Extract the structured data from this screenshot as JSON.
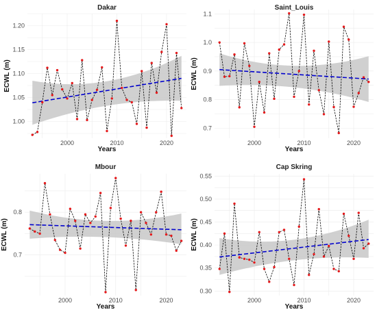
{
  "chart_data": [
    {
      "type": "line",
      "title": "Dakar",
      "xlabel": "Years",
      "ylabel": "ECWL (m)",
      "xlim": [
        1992,
        2024
      ],
      "ylim": [
        0.965,
        1.225
      ],
      "xticks": [
        2000,
        2010,
        2020
      ],
      "yticks": [
        1.0,
        1.05,
        1.1,
        1.15,
        1.2
      ],
      "ydecimals": 2,
      "grid": true,
      "legend": "none",
      "x": [
        1993,
        1994,
        1995,
        1996,
        1997,
        1998,
        1999,
        2000,
        2001,
        2002,
        2003,
        2004,
        2005,
        2006,
        2007,
        2008,
        2009,
        2010,
        2011,
        2012,
        2013,
        2014,
        2015,
        2016,
        2017,
        2018,
        2019,
        2020,
        2021,
        2022,
        2023
      ],
      "values": [
        0.972,
        0.978,
        1.04,
        1.112,
        1.055,
        1.107,
        1.067,
        1.048,
        1.08,
        1.005,
        1.128,
        1.003,
        1.045,
        1.066,
        1.113,
        0.98,
        1.048,
        1.21,
        1.07,
        1.045,
        1.04,
        0.995,
        1.105,
        0.987,
        1.122,
        1.06,
        1.145,
        1.203,
        0.97,
        1.143,
        1.028
      ],
      "trend": {
        "x": [
          1993,
          2023
        ],
        "y": [
          1.039,
          1.09
        ],
        "ci_low": [
          0.993,
          1.043
        ],
        "ci_mid": [
          1.043,
          1.059
        ],
        "ci_high": [
          1.085,
          1.137
        ]
      },
      "colors": {
        "points": "#e41a1c",
        "line": "#000000",
        "trend": "#0000cc",
        "band": "#c8c8c8"
      }
    },
    {
      "type": "line",
      "title": "Saint_Louis",
      "xlabel": "Years",
      "ylabel": "ECWL (m)",
      "xlim": [
        1992,
        2024
      ],
      "ylim": [
        0.665,
        1.115
      ],
      "xticks": [
        2000,
        2010,
        2020
      ],
      "yticks": [
        0.7,
        0.8,
        0.9,
        1.0,
        1.1
      ],
      "ydecimals": 1,
      "grid": true,
      "legend": "none",
      "x": [
        1993,
        1994,
        1995,
        1996,
        1997,
        1998,
        1999,
        2000,
        2001,
        2002,
        2003,
        2004,
        2005,
        2006,
        2007,
        2008,
        2009,
        2010,
        2011,
        2012,
        2013,
        2014,
        2015,
        2016,
        2017,
        2018,
        2019,
        2020,
        2021,
        2022,
        2023
      ],
      "values": [
        1.0,
        0.88,
        0.882,
        0.958,
        0.773,
        0.997,
        0.918,
        0.705,
        0.862,
        0.755,
        0.962,
        0.803,
        0.975,
        0.993,
        1.102,
        0.81,
        0.9,
        1.097,
        0.783,
        0.971,
        0.833,
        0.749,
        1.003,
        0.774,
        0.683,
        1.055,
        1.01,
        0.775,
        0.823,
        0.878,
        0.862
      ],
      "trend": {
        "x": [
          1993,
          2023
        ],
        "y": [
          0.905,
          0.872
        ],
        "ci_low": [
          0.848,
          0.792
        ],
        "ci_mid": [
          0.862,
          0.88
        ],
        "ci_high": [
          0.962,
          0.952
        ]
      },
      "colors": {
        "points": "#e41a1c",
        "line": "#000000",
        "trend": "#0000cc",
        "band": "#c8c8c8"
      }
    },
    {
      "type": "line",
      "title": "Mbour",
      "xlabel": "Years",
      "ylabel": "ECWL (m)",
      "xlim": [
        1992,
        2024
      ],
      "ylim": [
        0.605,
        0.89
      ],
      "xticks": [
        2000,
        2010,
        2020
      ],
      "yticks": [
        0.7,
        0.8
      ],
      "ydecimals": 1,
      "grid": true,
      "legend": "none",
      "x": [
        1993,
        1994,
        1995,
        1996,
        1997,
        1998,
        1999,
        2000,
        2001,
        2002,
        2003,
        2004,
        2005,
        2006,
        2007,
        2008,
        2009,
        2010,
        2011,
        2012,
        2013,
        2014,
        2015,
        2016,
        2017,
        2018,
        2019,
        2020,
        2021,
        2022,
        2023
      ],
      "values": [
        0.762,
        0.755,
        0.75,
        0.868,
        0.795,
        0.735,
        0.712,
        0.705,
        0.808,
        0.78,
        0.715,
        0.795,
        0.775,
        0.79,
        0.845,
        0.613,
        0.81,
        0.88,
        0.785,
        0.722,
        0.78,
        0.618,
        0.8,
        0.775,
        0.748,
        0.8,
        0.848,
        0.748,
        0.745,
        0.71,
        0.733
      ],
      "trend": {
        "x": [
          1993,
          2023
        ],
        "y": [
          0.771,
          0.759
        ],
        "ci_low": [
          0.738,
          0.725
        ],
        "ci_mid": [
          0.752,
          0.757
        ],
        "ci_high": [
          0.804,
          0.797
        ]
      },
      "colors": {
        "points": "#e41a1c",
        "line": "#000000",
        "trend": "#0000cc",
        "band": "#c8c8c8"
      }
    },
    {
      "type": "line",
      "title": "Cap Skring",
      "xlabel": "Years",
      "ylabel": "ECWL (m)",
      "xlim": [
        1992,
        2024
      ],
      "ylim": [
        0.29,
        0.555
      ],
      "xticks": [
        2000,
        2010,
        2020
      ],
      "yticks": [
        0.3,
        0.35,
        0.4,
        0.45,
        0.5,
        0.55
      ],
      "ydecimals": 2,
      "grid": true,
      "legend": "none",
      "x": [
        1993,
        1994,
        1995,
        1996,
        1997,
        1998,
        1999,
        2000,
        2001,
        2002,
        2003,
        2004,
        2005,
        2006,
        2007,
        2008,
        2009,
        2010,
        2011,
        2012,
        2013,
        2014,
        2015,
        2016,
        2017,
        2018,
        2019,
        2020,
        2021,
        2022,
        2023
      ],
      "values": [
        0.348,
        0.425,
        0.298,
        0.49,
        0.373,
        0.37,
        0.368,
        0.362,
        0.428,
        0.348,
        0.32,
        0.352,
        0.428,
        0.433,
        0.37,
        0.313,
        0.44,
        0.543,
        0.335,
        0.38,
        0.478,
        0.375,
        0.398,
        0.348,
        0.343,
        0.468,
        0.42,
        0.37,
        0.47,
        0.393,
        0.403
      ],
      "trend": {
        "x": [
          1993,
          2023
        ],
        "y": [
          0.374,
          0.412
        ],
        "ci_low": [
          0.335,
          0.372
        ],
        "ci_mid": [
          0.372,
          0.394
        ],
        "ci_high": [
          0.415,
          0.455
        ]
      },
      "colors": {
        "points": "#e41a1c",
        "line": "#000000",
        "trend": "#0000cc",
        "band": "#c8c8c8"
      }
    }
  ]
}
